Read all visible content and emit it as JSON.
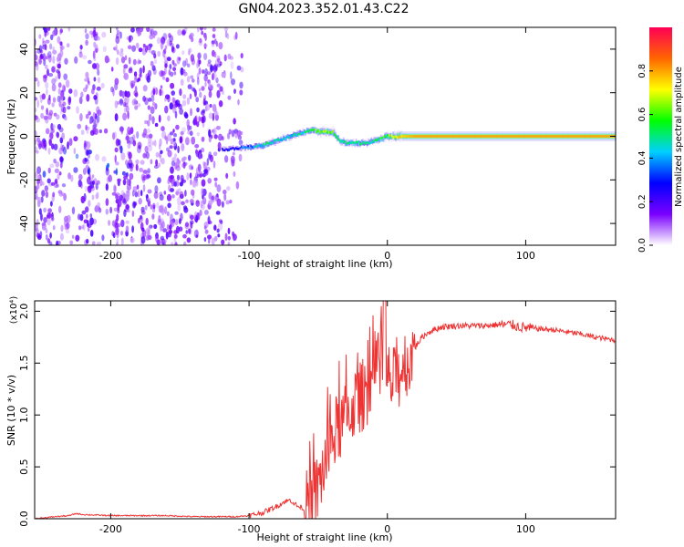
{
  "figure": {
    "title": "GN04.2023.352.01.43.C22"
  },
  "chart_data": [
    {
      "type": "heatmap",
      "xlabel": "Height of straight line (km)",
      "ylabel": "Frequency (Hz)",
      "xlim": [
        -255,
        165
      ],
      "ylim": [
        -50,
        50
      ],
      "xticks": [
        -200,
        -100,
        0,
        100
      ],
      "yticks": [
        -40,
        -20,
        0,
        20,
        40
      ],
      "colorbar": {
        "label": "Normalized spectral amplitude",
        "range": [
          0.0,
          1.0
        ],
        "ticks": [
          0.0,
          0.2,
          0.4,
          0.6,
          0.8
        ],
        "tick_labels": [
          "0.0",
          "0.2",
          "0.4",
          "0.6",
          "0.8"
        ],
        "colormap": [
          "#ffffff",
          "#7a00ff",
          "#0000ff",
          "#00d0ff",
          "#00ff00",
          "#ffff00",
          "#ff6600",
          "#ff0055"
        ]
      },
      "noise_region": {
        "x": [
          -255,
          -105
        ],
        "y": [
          -50,
          50
        ],
        "amplitude": 0.15
      },
      "ridge": {
        "x": [
          -120,
          -100,
          -90,
          -80,
          -70,
          -60,
          -55,
          -50,
          -40,
          -35,
          -30,
          -20,
          -15,
          -10,
          0,
          10,
          20,
          40,
          60,
          80,
          100,
          120,
          140,
          165
        ],
        "y": [
          -6,
          -5,
          -4,
          -2,
          0,
          2,
          3,
          2,
          2,
          -2,
          -3,
          -3,
          -3,
          -2,
          0,
          0,
          0,
          0,
          0,
          0,
          0,
          0,
          0,
          0
        ],
        "amplitude": [
          0.25,
          0.35,
          0.5,
          0.45,
          0.45,
          0.5,
          0.55,
          0.65,
          0.6,
          0.55,
          0.5,
          0.5,
          0.45,
          0.5,
          0.6,
          0.75,
          0.8,
          0.8,
          0.8,
          0.8,
          0.8,
          0.8,
          0.8,
          0.8
        ]
      }
    },
    {
      "type": "line",
      "xlabel": "Height of straight line (km)",
      "ylabel": "SNR (10 * v/v)",
      "y_multiplier": "(x10⁴)",
      "xlim": [
        -255,
        165
      ],
      "ylim": [
        0.0,
        2.1
      ],
      "xticks": [
        -200,
        -100,
        0,
        100
      ],
      "yticks": [
        0.0,
        0.5,
        1.0,
        1.5,
        2.0
      ],
      "ytick_labels": [
        "0.0",
        "0.5",
        "1.0",
        "1.5",
        "2.0"
      ],
      "series": [
        {
          "color": "#ee3333",
          "x": [
            -255,
            -240,
            -230,
            -225,
            -220,
            -200,
            -180,
            -160,
            -140,
            -120,
            -110,
            -100,
            -90,
            -80,
            -75,
            -70,
            -65,
            -60,
            -55,
            -50,
            -45,
            -40,
            -35,
            -30,
            -25,
            -20,
            -15,
            -10,
            -5,
            -2,
            0,
            5,
            10,
            15,
            20,
            25,
            30,
            35,
            40,
            50,
            60,
            70,
            80,
            90,
            95,
            100,
            110,
            120,
            130,
            140,
            150,
            165
          ],
          "y": [
            0.0,
            0.02,
            0.03,
            0.05,
            0.04,
            0.03,
            0.03,
            0.03,
            0.02,
            0.02,
            0.02,
            0.03,
            0.06,
            0.12,
            0.16,
            0.18,
            0.12,
            0.1,
            0.15,
            0.3,
            0.55,
            0.75,
            0.9,
            0.95,
            1.1,
            1.15,
            1.25,
            1.35,
            1.4,
            1.45,
            1.35,
            1.3,
            1.45,
            1.55,
            1.65,
            1.75,
            1.8,
            1.83,
            1.85,
            1.86,
            1.86,
            1.86,
            1.87,
            1.87,
            1.85,
            1.84,
            1.83,
            1.82,
            1.8,
            1.78,
            1.75,
            1.72
          ]
        }
      ]
    }
  ]
}
